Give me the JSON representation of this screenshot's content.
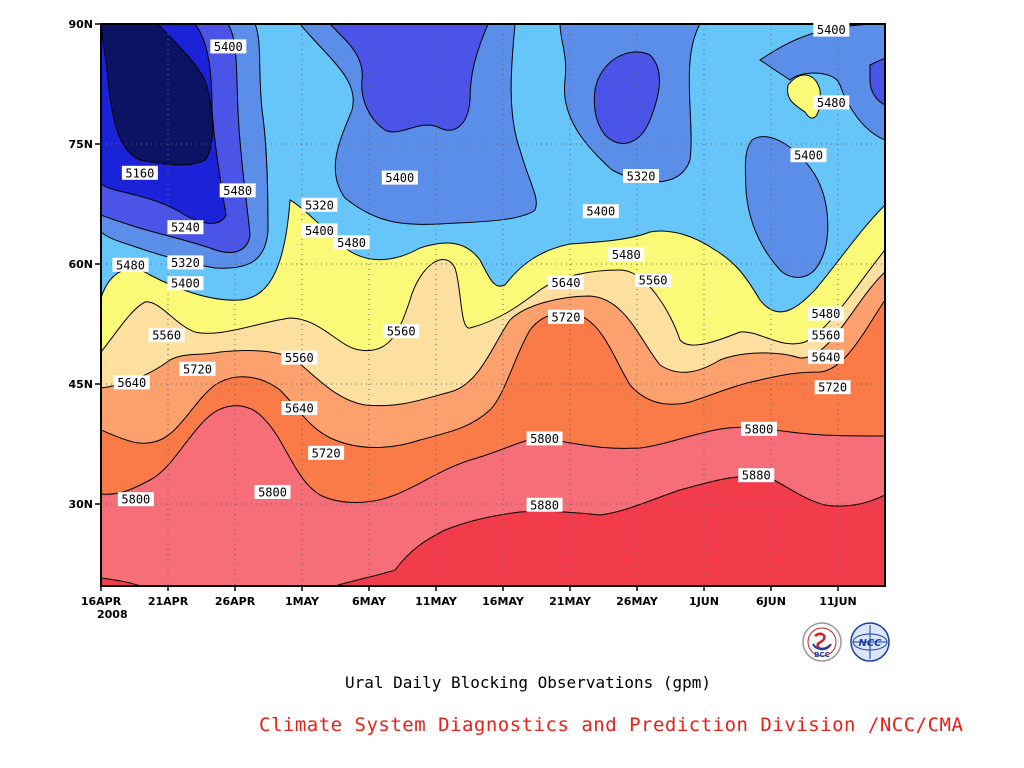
{
  "title": "Ural Daily Blocking Observations (gpm)",
  "credit": "Climate System Diagnostics and Prediction Division /NCC/CMA",
  "logos": [
    {
      "icon": "bcc-logo",
      "text": "BCC"
    },
    {
      "icon": "ncc-logo",
      "text": "NCC"
    }
  ],
  "chart_data": {
    "type": "heatmap",
    "subtype": "filled-contour time-latitude section",
    "title": "Ural Daily Blocking Observations (gpm)",
    "xlabel": "",
    "ylabel": "",
    "x_year_label": "2008",
    "x_ticks": [
      "16APR",
      "21APR",
      "26APR",
      "1MAY",
      "6MAY",
      "11MAY",
      "16MAY",
      "21MAY",
      "26MAY",
      "1JUN",
      "6JUN",
      "11JUN"
    ],
    "x_range": [
      "2008-04-16",
      "2008-06-14"
    ],
    "y_ticks": [
      "30N",
      "45N",
      "60N",
      "75N",
      "90N"
    ],
    "y_range_deg": [
      20,
      90
    ],
    "grid": true,
    "contour_levels": [
      5160,
      5240,
      5320,
      5400,
      5480,
      5560,
      5640,
      5720,
      5800,
      5880
    ],
    "fill_colors": {
      "below_5160": "#0b1464",
      "5160_5240": "#1a23d8",
      "5240_5320": "#4a55e8",
      "5320_5400": "#5b8ee8",
      "5400_5480": "#66c6fa",
      "5480_5560": "#fbfa78",
      "5560_5640": "#fde0a0",
      "5640_5720": "#fca06e",
      "5720_5800": "#fa7a48",
      "5800_5880": "#f56e78",
      "above_5880": "#f23c4c"
    },
    "contour_labels": [
      {
        "value": "5400",
        "day": 9.5,
        "lat": 87.2
      },
      {
        "value": "5400",
        "day": 54.5,
        "lat": 89.3
      },
      {
        "value": "5480",
        "day": 54.5,
        "lat": 80.2
      },
      {
        "value": "5400",
        "day": 52.8,
        "lat": 73.6
      },
      {
        "value": "5160",
        "day": 2.9,
        "lat": 71.4
      },
      {
        "value": "5480",
        "day": 10.2,
        "lat": 69.2
      },
      {
        "value": "5400",
        "day": 22.3,
        "lat": 70.8
      },
      {
        "value": "5320",
        "day": 40.3,
        "lat": 71.0
      },
      {
        "value": "5320",
        "day": 16.3,
        "lat": 67.4
      },
      {
        "value": "5400",
        "day": 37.3,
        "lat": 66.6
      },
      {
        "value": "5240",
        "day": 6.3,
        "lat": 64.6
      },
      {
        "value": "5400",
        "day": 16.3,
        "lat": 64.2
      },
      {
        "value": "5480",
        "day": 18.7,
        "lat": 62.7
      },
      {
        "value": "5480",
        "day": 39.2,
        "lat": 61.2
      },
      {
        "value": "5320",
        "day": 6.3,
        "lat": 60.2
      },
      {
        "value": "5480",
        "day": 2.2,
        "lat": 59.9
      },
      {
        "value": "5560",
        "day": 41.2,
        "lat": 58.0
      },
      {
        "value": "5400",
        "day": 6.3,
        "lat": 57.6
      },
      {
        "value": "5640",
        "day": 34.7,
        "lat": 57.7
      },
      {
        "value": "5480",
        "day": 54.1,
        "lat": 53.8
      },
      {
        "value": "5720",
        "day": 34.7,
        "lat": 53.4
      },
      {
        "value": "5560",
        "day": 4.9,
        "lat": 51.1
      },
      {
        "value": "5560",
        "day": 22.4,
        "lat": 51.6
      },
      {
        "value": "5560",
        "day": 54.1,
        "lat": 51.1
      },
      {
        "value": "5560",
        "day": 14.8,
        "lat": 48.3
      },
      {
        "value": "5640",
        "day": 54.1,
        "lat": 48.4
      },
      {
        "value": "5720",
        "day": 7.2,
        "lat": 46.9
      },
      {
        "value": "5640",
        "day": 2.3,
        "lat": 45.2
      },
      {
        "value": "5720",
        "day": 54.6,
        "lat": 44.6
      },
      {
        "value": "5640",
        "day": 14.8,
        "lat": 42.0
      },
      {
        "value": "5800",
        "day": 49.1,
        "lat": 39.4
      },
      {
        "value": "5800",
        "day": 33.1,
        "lat": 38.2
      },
      {
        "value": "5720",
        "day": 16.8,
        "lat": 36.4
      },
      {
        "value": "5880",
        "day": 48.9,
        "lat": 33.6
      },
      {
        "value": "5800",
        "day": 12.8,
        "lat": 31.5
      },
      {
        "value": "5800",
        "day": 2.6,
        "lat": 30.6
      },
      {
        "value": "5880",
        "day": 33.1,
        "lat": 29.9
      }
    ]
  }
}
